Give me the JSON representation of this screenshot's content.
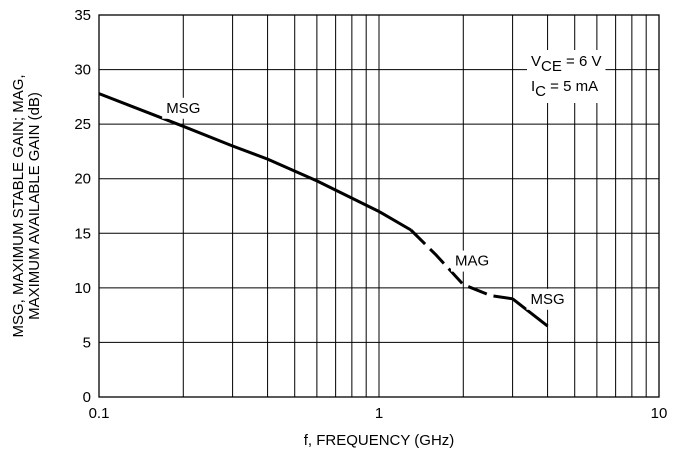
{
  "chart_data": {
    "type": "line",
    "xlabel": "f, FREQUENCY (GHz)",
    "ylabel_lines": [
      "MSG, MAXIMUM STABLE GAIN; MAG,",
      "MAXIMUM AVAILABLE GAIN (dB)"
    ],
    "x_scale": "log",
    "xlim": [
      0.1,
      10
    ],
    "ylim": [
      0,
      35
    ],
    "x_ticks": [
      {
        "value": 0.1,
        "label": "0.1"
      },
      {
        "value": 1,
        "label": "1"
      },
      {
        "value": 10,
        "label": "10"
      }
    ],
    "y_ticks": [
      {
        "value": 0,
        "label": "0"
      },
      {
        "value": 5,
        "label": "5"
      },
      {
        "value": 10,
        "label": "10"
      },
      {
        "value": 15,
        "label": "15"
      },
      {
        "value": 20,
        "label": "20"
      },
      {
        "value": 25,
        "label": "25"
      },
      {
        "value": 30,
        "label": "30"
      },
      {
        "value": 35,
        "label": "35"
      }
    ],
    "grid": true,
    "series": [
      {
        "name": "MSG",
        "style": "solid",
        "x": [
          0.1,
          0.2,
          0.3,
          0.4,
          0.6,
          1.0,
          1.3
        ],
        "y": [
          27.8,
          24.8,
          23.0,
          21.8,
          19.8,
          17.0,
          15.3
        ]
      },
      {
        "name": "MAG",
        "style": "dashed",
        "x": [
          1.3,
          1.6,
          2.0,
          2.5,
          3.0
        ],
        "y": [
          15.3,
          13.0,
          10.3,
          9.3,
          9.0
        ]
      },
      {
        "name": "MSG",
        "style": "solid",
        "x": [
          3.0,
          4.0
        ],
        "y": [
          9.0,
          6.5
        ]
      }
    ],
    "annotations": [
      {
        "text": "MSG",
        "x": 0.2,
        "y": 26.5
      },
      {
        "text": "MAG",
        "x": 2.15,
        "y": 12.5
      },
      {
        "text": "MSG",
        "x": 4.0,
        "y": 9.0
      }
    ],
    "conditions": [
      {
        "prefix": "V",
        "sub": "CE",
        "rest": " = 6 V"
      },
      {
        "prefix": "I",
        "sub": "C",
        "rest": " = 5 mA"
      }
    ],
    "colors": {
      "line": "#000000",
      "grid": "#000000",
      "background": "#ffffff"
    }
  }
}
